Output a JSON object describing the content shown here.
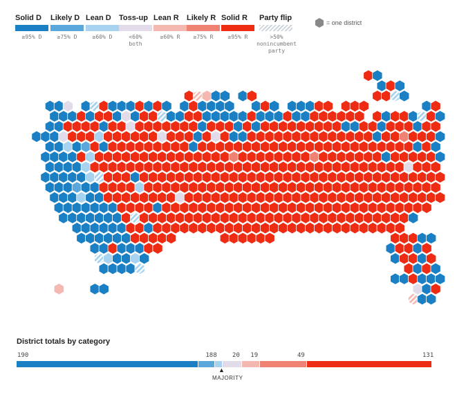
{
  "legend": {
    "items": [
      {
        "label": "Solid D",
        "range": "≥95% D",
        "color": "#1a7fc3"
      },
      {
        "label": "Likely D",
        "range": "≥75% D",
        "color": "#5aa7dc"
      },
      {
        "label": "Lean D",
        "range": "≥60% D",
        "color": "#a7d3f0"
      },
      {
        "label": "Toss-up",
        "range": "<60% both",
        "color": "#e2dcea"
      },
      {
        "label": "Lean R",
        "range": "≥60% R",
        "color": "#f5b8b0"
      },
      {
        "label": "Likely R",
        "range": "≥75% R",
        "color": "#ef8272"
      },
      {
        "label": "Solid R",
        "range": "≥95% R",
        "color": "#ee2c13"
      }
    ],
    "flip": {
      "label": "Party flip",
      "description": ">50% nonincumbent party"
    },
    "hex_key": "= one district"
  },
  "totals": {
    "title": "District totals by category",
    "categories": [
      {
        "key": "solid_d",
        "count": 190,
        "color": "#1a7fc3"
      },
      {
        "key": "likely_d",
        "count": 18,
        "color": "#5aa7dc"
      },
      {
        "key": "lean_d",
        "count": 8,
        "color": "#a7d3f0"
      },
      {
        "key": "tossup",
        "count": 20,
        "color": "#e2dcea"
      },
      {
        "key": "lean_r",
        "count": 19,
        "color": "#f5b8b0"
      },
      {
        "key": "likely_r",
        "count": 49,
        "color": "#ef8272"
      },
      {
        "key": "solid_r",
        "count": 131,
        "color": "#ee2c13"
      }
    ],
    "majority_label": "MAJORITY",
    "majority_value": 218
  },
  "map": {
    "description_free": true,
    "category_order": [
      "solid_d",
      "likely_d",
      "lean_d",
      "tossup",
      "lean_r",
      "likely_r",
      "solid_r",
      "flip_d",
      "flip_r"
    ],
    "flip_colors": {
      "flip_d": "#a7d3f0",
      "flip_r": "#f5b8b0"
    }
  }
}
